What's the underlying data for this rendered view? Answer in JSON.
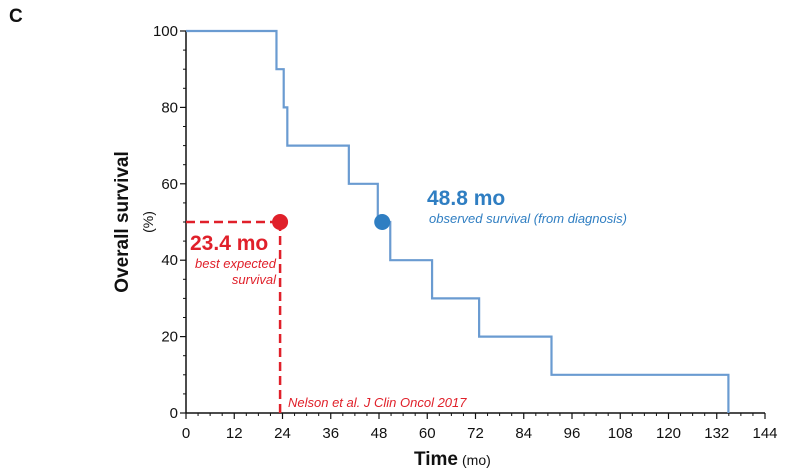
{
  "panel_label": "C",
  "colors": {
    "survival_curve": "#6a9bd1",
    "observed": "#2f7ec2",
    "expected": "#e0202a",
    "axis": "#111111"
  },
  "chart_data": {
    "type": "line",
    "step": true,
    "ylabel_main": "Overall survival",
    "ylabel_unit": "(%)",
    "xlabel_main": "Time",
    "xlabel_unit": "(mo)",
    "xlim": [
      0,
      144
    ],
    "ylim": [
      0,
      100
    ],
    "xticks": [
      0,
      12,
      24,
      36,
      48,
      60,
      72,
      84,
      96,
      108,
      120,
      132,
      144
    ],
    "yticks": [
      0,
      20,
      40,
      60,
      80,
      100
    ],
    "grid": false,
    "series": [
      {
        "x": [
          0,
          22.5,
          22.5,
          24.3,
          24.3,
          25.2,
          25.2,
          40.5,
          40.5,
          47.7,
          47.7,
          50.8,
          50.8,
          61.2,
          61.2,
          72.9,
          72.9,
          90.9,
          90.9,
          134.9,
          134.9
        ],
        "y": [
          100,
          100,
          90,
          90,
          80,
          80,
          70,
          70,
          60,
          60,
          50,
          50,
          40,
          40,
          30,
          30,
          20,
          20,
          10,
          10,
          0
        ]
      }
    ],
    "annotations": {
      "observed": {
        "x": 48.8,
        "y": 50,
        "value_text": "48.8 mo",
        "label": "observed survival (from diagnosis)"
      },
      "expected": {
        "x": 23.4,
        "y": 50,
        "value_text": "23.4 mo",
        "label_line1": "best expected",
        "label_line2": "survival",
        "reference": "Nelson et al. J Clin Oncol 2017"
      }
    }
  }
}
